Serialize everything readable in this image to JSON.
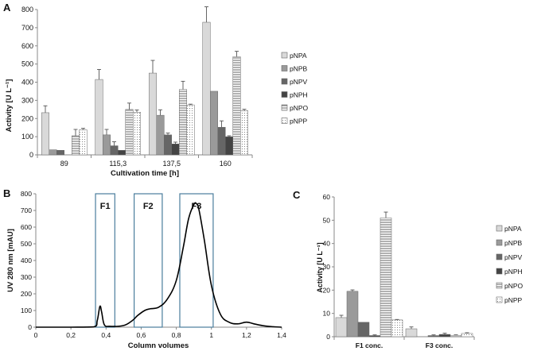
{
  "panels": [
    {
      "letter": "A"
    },
    {
      "letter": "B"
    },
    {
      "letter": "C"
    }
  ],
  "colors": {
    "axis": "#888888",
    "text": "#111111",
    "pNPA": "#d9d9d9",
    "pNPB": "#9a9a9a",
    "pNPV": "#666666",
    "pNPH": "#444444",
    "fraction_box": "#4a7d9c",
    "trace": "#000000"
  },
  "chart_data": [
    {
      "id": "A",
      "type": "bar",
      "title": "",
      "xlabel": "Cultivation time [h]",
      "ylabel": "Activity [U L⁻¹]",
      "ylim": [
        0,
        800
      ],
      "yticks": [
        "0",
        "100",
        "200",
        "300",
        "400",
        "500",
        "600",
        "700",
        "800"
      ],
      "categories": [
        "89",
        "115,3",
        "137,5",
        "160"
      ],
      "legend_position": "right",
      "series": [
        {
          "name": "pNPA",
          "values": [
            232,
            415,
            450,
            730
          ],
          "errors": [
            38,
            55,
            70,
            85
          ]
        },
        {
          "name": "pNPB",
          "values": [
            28,
            110,
            218,
            350
          ],
          "errors": [
            0,
            30,
            30,
            0
          ]
        },
        {
          "name": "pNPV",
          "values": [
            25,
            50,
            110,
            152
          ],
          "errors": [
            0,
            22,
            10,
            35
          ]
        },
        {
          "name": "pNPH",
          "values": [
            0,
            25,
            60,
            100
          ],
          "errors": [
            0,
            0,
            10,
            5
          ]
        },
        {
          "name": "pNPO",
          "values": [
            105,
            250,
            360,
            540
          ],
          "errors": [
            35,
            35,
            45,
            30
          ]
        },
        {
          "name": "pNPP",
          "values": [
            138,
            235,
            275,
            243
          ],
          "errors": [
            8,
            12,
            4,
            8
          ]
        }
      ]
    },
    {
      "id": "B",
      "type": "line",
      "title": "",
      "xlabel": "Column volumes",
      "ylabel": "UV 280 nm [mAU]",
      "xlim": [
        0,
        1.4
      ],
      "ylim": [
        0,
        800
      ],
      "xticks": [
        "0",
        "0,2",
        "0,4",
        "0,6",
        "0,8",
        "1",
        "1,2",
        "1,4"
      ],
      "yticks": [
        "0",
        "100",
        "200",
        "300",
        "400",
        "500",
        "600",
        "700",
        "800"
      ],
      "x": [
        0,
        0.2,
        0.33,
        0.35,
        0.365,
        0.375,
        0.39,
        0.42,
        0.5,
        0.55,
        0.58,
        0.62,
        0.65,
        0.7,
        0.75,
        0.8,
        0.84,
        0.87,
        0.9,
        0.915,
        0.93,
        0.96,
        1.0,
        1.05,
        1.1,
        1.15,
        1.2,
        1.25,
        1.3,
        1.35,
        1.4
      ],
      "y": [
        0,
        0,
        2,
        40,
        125,
        90,
        15,
        5,
        10,
        40,
        70,
        100,
        110,
        120,
        170,
        280,
        480,
        650,
        735,
        740,
        700,
        520,
        250,
        80,
        30,
        20,
        30,
        18,
        8,
        3,
        0
      ],
      "fractions": [
        {
          "label": "F1",
          "x_start": 0.34,
          "x_end": 0.45
        },
        {
          "label": "F2",
          "x_start": 0.56,
          "x_end": 0.72
        },
        {
          "label": "F3",
          "x_start": 0.82,
          "x_end": 1.01
        }
      ]
    },
    {
      "id": "C",
      "type": "bar",
      "title": "",
      "xlabel": "",
      "ylabel": "Activity [U L⁻¹]",
      "ylim": [
        0,
        60
      ],
      "yticks": [
        "0",
        "10",
        "20",
        "30",
        "40",
        "50",
        "60"
      ],
      "categories": [
        "F1 conc.",
        "F3 conc."
      ],
      "legend_position": "right",
      "series": [
        {
          "name": "pNPA",
          "values": [
            8.2,
            3.4
          ],
          "errors": [
            1.0,
            0.8
          ]
        },
        {
          "name": "pNPB",
          "values": [
            19.5,
            0
          ],
          "errors": [
            0.6,
            0
          ]
        },
        {
          "name": "pNPV",
          "values": [
            6.2,
            0.5
          ],
          "errors": [
            0,
            0.3
          ]
        },
        {
          "name": "pNPH",
          "values": [
            0.5,
            1.0
          ],
          "errors": [
            0.3,
            0.5
          ]
        },
        {
          "name": "pNPO",
          "values": [
            51.0,
            0.6
          ],
          "errors": [
            2.5,
            0.2
          ]
        },
        {
          "name": "pNPP",
          "values": [
            7.2,
            1.4
          ],
          "errors": [
            0.2,
            0.3
          ]
        }
      ]
    }
  ]
}
